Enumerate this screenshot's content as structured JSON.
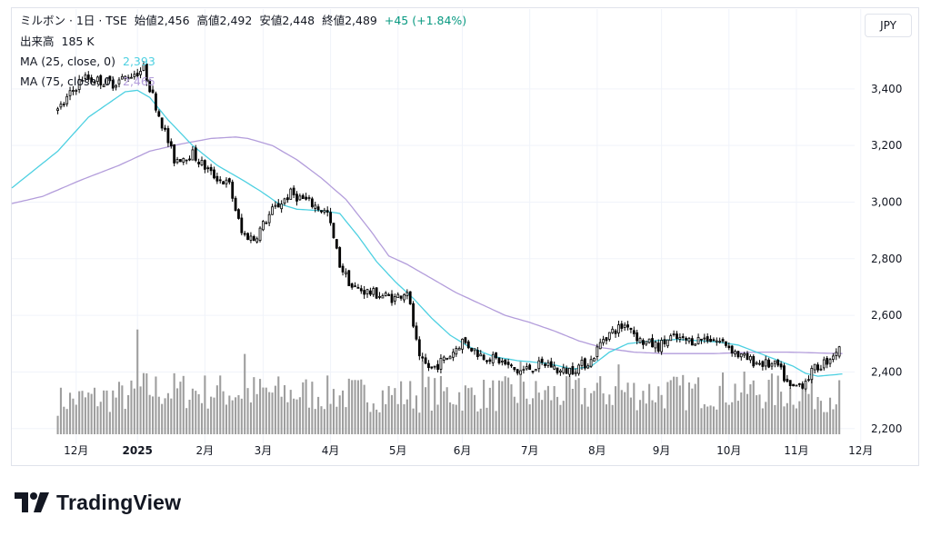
{
  "header": {
    "symbol": "ミルボン · 1日 · TSE",
    "open": "始値2,456",
    "high": "高値2,492",
    "low": "安値2,448",
    "close": "終値2,489",
    "change": "+45 (+1.84%)"
  },
  "volume_legend": {
    "label": "出来高",
    "value": "185 K"
  },
  "ma25": {
    "label": "MA (25, close, 0)",
    "value": "2,393"
  },
  "ma75": {
    "label": "MA (75, close, 0)",
    "value": "2,465"
  },
  "currency": "JPY",
  "brand": "TradingView",
  "colors": {
    "up_fill": "#ffffff",
    "down_fill": "#000000",
    "candle_stroke": "#000000",
    "volume": "#9e9e9e",
    "ma25": "#4dd0e1",
    "ma75": "#b39ddb",
    "change_up": "#089981",
    "grid": "#f0f3fa"
  },
  "chart_data": {
    "type": "candlestick",
    "title": "ミルボン · 1日 · TSE",
    "ylim": [
      2180,
      3560
    ],
    "y_ticks": [
      {
        "value": 2200,
        "label": "2,200"
      },
      {
        "value": 2400,
        "label": "2,400"
      },
      {
        "value": 2600,
        "label": "2,600"
      },
      {
        "value": 2800,
        "label": "2,800"
      },
      {
        "value": 3000,
        "label": "3,000"
      },
      {
        "value": 3200,
        "label": "3,200"
      },
      {
        "value": 3400,
        "label": "3,400"
      }
    ],
    "x_range": [
      -15,
      260
    ],
    "x_ticks": [
      {
        "index": 6,
        "label": "12月"
      },
      {
        "index": 26,
        "label": "2025"
      },
      {
        "index": 48,
        "label": "2月"
      },
      {
        "index": 67,
        "label": "3月"
      },
      {
        "index": 89,
        "label": "4月"
      },
      {
        "index": 111,
        "label": "5月"
      },
      {
        "index": 132,
        "label": "6月"
      },
      {
        "index": 154,
        "label": "7月"
      },
      {
        "index": 176,
        "label": "8月"
      },
      {
        "index": 197,
        "label": "9月"
      },
      {
        "index": 219,
        "label": "10月"
      },
      {
        "index": 241,
        "label": "11月"
      },
      {
        "index": 262,
        "label": "12月"
      }
    ],
    "price_keypoints": [
      [
        0,
        3320
      ],
      [
        8,
        3440
      ],
      [
        18,
        3420
      ],
      [
        28,
        3470
      ],
      [
        33,
        3310
      ],
      [
        38,
        3150
      ],
      [
        44,
        3170
      ],
      [
        50,
        3100
      ],
      [
        56,
        3060
      ],
      [
        60,
        2890
      ],
      [
        64,
        2870
      ],
      [
        70,
        2970
      ],
      [
        76,
        3030
      ],
      [
        82,
        3000
      ],
      [
        88,
        2960
      ],
      [
        92,
        2780
      ],
      [
        96,
        2700
      ],
      [
        102,
        2680
      ],
      [
        110,
        2660
      ],
      [
        114,
        2690
      ],
      [
        118,
        2440
      ],
      [
        122,
        2410
      ],
      [
        128,
        2460
      ],
      [
        132,
        2510
      ],
      [
        138,
        2460
      ],
      [
        144,
        2440
      ],
      [
        150,
        2400
      ],
      [
        156,
        2420
      ],
      [
        160,
        2430
      ],
      [
        164,
        2400
      ],
      [
        168,
        2410
      ],
      [
        174,
        2440
      ],
      [
        178,
        2520
      ],
      [
        182,
        2550
      ],
      [
        186,
        2570
      ],
      [
        190,
        2510
      ],
      [
        196,
        2490
      ],
      [
        200,
        2520
      ],
      [
        206,
        2510
      ],
      [
        212,
        2520
      ],
      [
        218,
        2500
      ],
      [
        222,
        2460
      ],
      [
        226,
        2440
      ],
      [
        230,
        2430
      ],
      [
        235,
        2420
      ],
      [
        239,
        2340
      ],
      [
        243,
        2360
      ],
      [
        247,
        2410
      ],
      [
        251,
        2440
      ],
      [
        255,
        2489
      ]
    ],
    "volume_keypoints": [
      [
        0,
        120
      ],
      [
        25,
        140
      ],
      [
        26,
        300
      ],
      [
        27,
        160
      ],
      [
        60,
        150
      ],
      [
        61,
        230
      ],
      [
        62,
        150
      ],
      [
        118,
        140
      ],
      [
        119,
        210
      ],
      [
        120,
        150
      ],
      [
        134,
        140
      ],
      [
        150,
        145
      ],
      [
        151,
        210
      ],
      [
        152,
        140
      ],
      [
        182,
        150
      ],
      [
        183,
        200
      ],
      [
        184,
        150
      ],
      [
        209,
        150
      ],
      [
        210,
        160
      ],
      [
        240,
        150
      ],
      [
        255,
        140
      ]
    ],
    "volume_max": 400,
    "ma25_keypoints": [
      [
        -15,
        3050
      ],
      [
        0,
        3180
      ],
      [
        10,
        3300
      ],
      [
        18,
        3360
      ],
      [
        22,
        3390
      ],
      [
        26,
        3395
      ],
      [
        30,
        3370
      ],
      [
        36,
        3290
      ],
      [
        44,
        3200
      ],
      [
        52,
        3130
      ],
      [
        60,
        3080
      ],
      [
        66,
        3040
      ],
      [
        72,
        2995
      ],
      [
        78,
        2975
      ],
      [
        86,
        2970
      ],
      [
        92,
        2960
      ],
      [
        98,
        2880
      ],
      [
        104,
        2790
      ],
      [
        110,
        2720
      ],
      [
        116,
        2660
      ],
      [
        122,
        2590
      ],
      [
        128,
        2530
      ],
      [
        134,
        2490
      ],
      [
        142,
        2455
      ],
      [
        150,
        2440
      ],
      [
        160,
        2430
      ],
      [
        168,
        2410
      ],
      [
        174,
        2420
      ],
      [
        180,
        2470
      ],
      [
        186,
        2500
      ],
      [
        194,
        2510
      ],
      [
        202,
        2515
      ],
      [
        210,
        2510
      ],
      [
        216,
        2505
      ],
      [
        222,
        2495
      ],
      [
        228,
        2470
      ],
      [
        234,
        2445
      ],
      [
        240,
        2420
      ],
      [
        244,
        2395
      ],
      [
        248,
        2385
      ],
      [
        253,
        2390
      ],
      [
        256,
        2393
      ]
    ],
    "ma75_keypoints": [
      [
        -15,
        2995
      ],
      [
        -5,
        3020
      ],
      [
        8,
        3080
      ],
      [
        20,
        3130
      ],
      [
        30,
        3180
      ],
      [
        40,
        3205
      ],
      [
        50,
        3225
      ],
      [
        58,
        3230
      ],
      [
        62,
        3225
      ],
      [
        70,
        3200
      ],
      [
        78,
        3150
      ],
      [
        86,
        3085
      ],
      [
        94,
        3010
      ],
      [
        102,
        2900
      ],
      [
        108,
        2810
      ],
      [
        114,
        2780
      ],
      [
        122,
        2730
      ],
      [
        130,
        2680
      ],
      [
        138,
        2640
      ],
      [
        146,
        2600
      ],
      [
        154,
        2575
      ],
      [
        162,
        2545
      ],
      [
        170,
        2510
      ],
      [
        178,
        2485
      ],
      [
        188,
        2470
      ],
      [
        198,
        2465
      ],
      [
        206,
        2465
      ],
      [
        214,
        2465
      ],
      [
        222,
        2468
      ],
      [
        230,
        2470
      ],
      [
        238,
        2470
      ],
      [
        246,
        2468
      ],
      [
        252,
        2466
      ],
      [
        256,
        2465
      ]
    ],
    "last_candle": {
      "open": 2456,
      "high": 2492,
      "low": 2448,
      "close": 2489
    }
  }
}
